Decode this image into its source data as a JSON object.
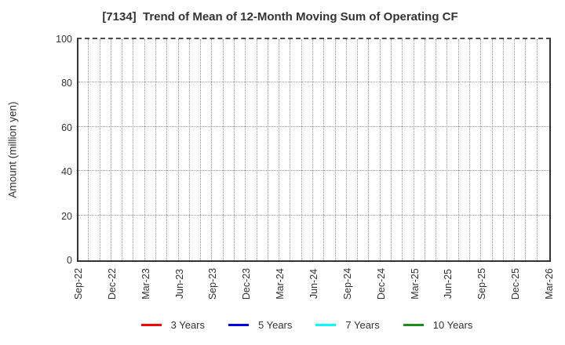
{
  "chart_data": {
    "type": "line",
    "title": "[7134]  Trend of Mean of 12-Month Moving Sum of Operating CF",
    "xlabel": "",
    "ylabel": "Amount (million yen)",
    "ylim": [
      0,
      100
    ],
    "yticks": [
      0,
      20,
      40,
      60,
      80,
      100
    ],
    "x_tick_labels": [
      "Sep-22",
      "Dec-22",
      "Mar-23",
      "Jun-23",
      "Sep-23",
      "Dec-23",
      "Mar-24",
      "Jun-24",
      "Sep-24",
      "Dec-24",
      "Mar-25",
      "Jun-25",
      "Sep-25",
      "Dec-25",
      "Mar-26"
    ],
    "x_total_months": 42,
    "grid": {
      "visible": true,
      "style": "dotted",
      "vertical_interval": "monthly",
      "horizontal_interval": 20,
      "color": "#9a9a9a"
    },
    "legend_position": "bottom-center",
    "series": [
      {
        "name": "3 Years",
        "color": "#ff0000",
        "values": []
      },
      {
        "name": "5 Years",
        "color": "#0000ee",
        "values": []
      },
      {
        "name": "7 Years",
        "color": "#00ffff",
        "values": []
      },
      {
        "name": "10 Years",
        "color": "#1e8c1e",
        "values": []
      }
    ],
    "note": "no data lines plotted (empty plot area)",
    "colors": {
      "axis": "#333333",
      "text": "#333333",
      "background": "#ffffff"
    }
  }
}
